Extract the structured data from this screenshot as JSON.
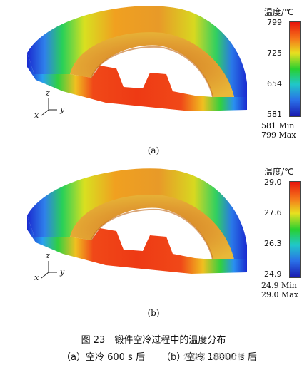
{
  "panels": [
    {
      "legend_title": "温度/℃",
      "ticks": [
        "799",
        "725",
        "654",
        "581"
      ],
      "min_text": "581 Min",
      "max_text": "799 Max",
      "sublabel": "(a)",
      "axis": {
        "z": "z",
        "x": "x",
        "y": "y"
      }
    },
    {
      "legend_title": "温度/℃",
      "ticks": [
        "29.0",
        "27.6",
        "26.3",
        "24.9"
      ],
      "min_text": "24.9 Min",
      "max_text": "29.0 Max",
      "sublabel": "(b)",
      "axis": {
        "z": "z",
        "x": "x",
        "y": "y"
      }
    }
  ],
  "caption": {
    "title": "图 23　锻件空冷过程中的温度分布",
    "sub_a": "（a）空冷 600 s 后",
    "sub_b": "（b）空冷 18000 s 后"
  },
  "watermark": "公众号 · 模拟分析"
}
